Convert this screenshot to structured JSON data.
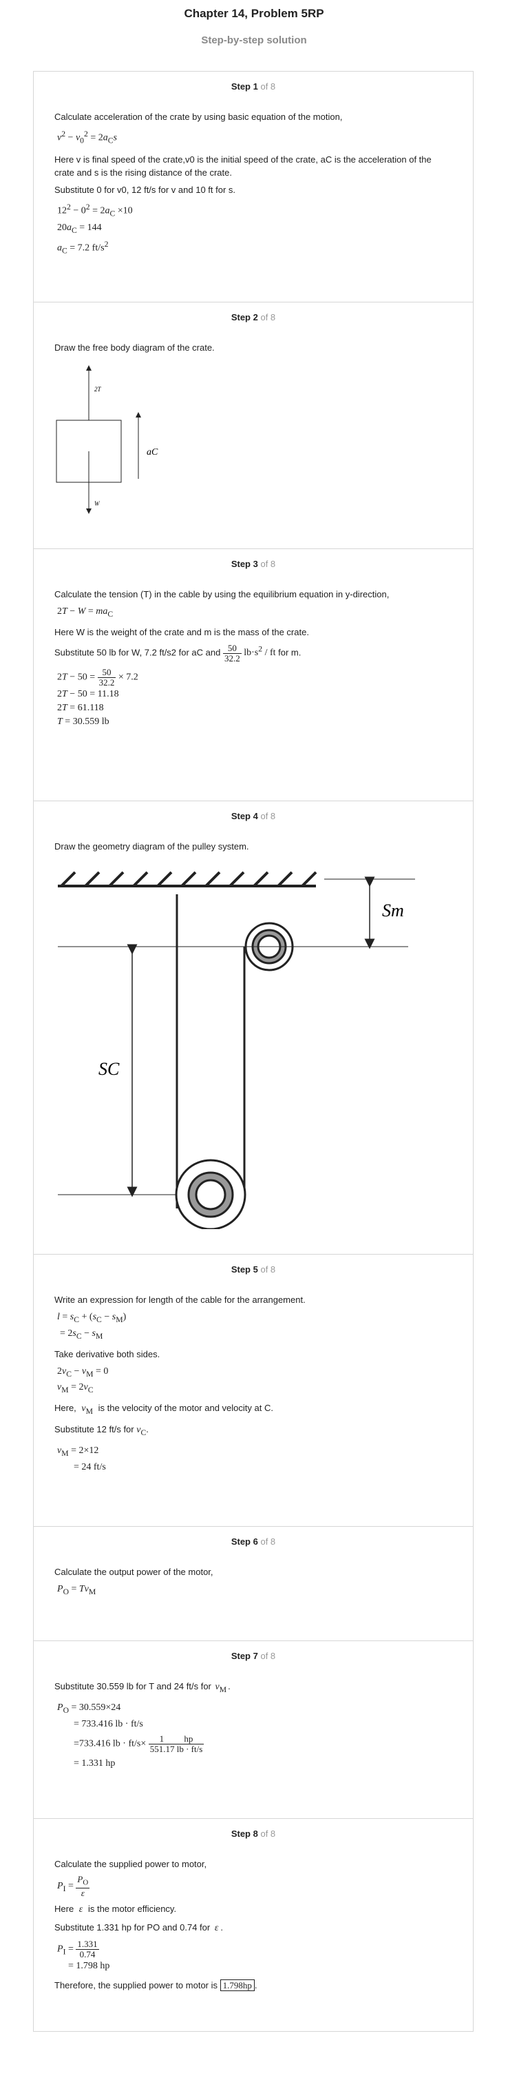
{
  "header": {
    "title": "Chapter 14, Problem 5RP",
    "subtitle": "Step-by-step solution"
  },
  "steps": [
    {
      "label": "Step 1",
      "of": "of 8",
      "t1": "Calculate acceleration of the crate by using basic equation of the motion,",
      "t2": "Here v is final speed of the crate,v0 is the initial speed of the crate, aC is the acceleration of the crate and s is the rising distance of the crate.",
      "t3": "Substitute 0 for v0, 12 ft/s for v and 10 ft for s."
    },
    {
      "label": "Step 2",
      "of": "of 8",
      "t1": "Draw the free body diagram of the crate.",
      "fbd": {
        "tension": "2T",
        "weight": "W",
        "accel": "aC"
      }
    },
    {
      "label": "Step 3",
      "of": "of 8",
      "t1": "Calculate the tension (T) in the cable by using the equilibrium equation in y-direction,",
      "t2": "Here W is the weight of the crate and m is the mass of the crate.",
      "t3a": "Substitute 50 lb for W, 7.2 ft/s2 for aC and",
      "t3b": "for m."
    },
    {
      "label": "Step 4",
      "of": "of 8",
      "t1": "Draw the geometry diagram of the pulley system.",
      "geo": {
        "sm": "Sm",
        "sc": "SC"
      }
    },
    {
      "label": "Step 5",
      "of": "of 8",
      "t1": "Write an expression for length of the cable for the arrangement.",
      "t2": "Take derivative both sides.",
      "t3": "is the velocity of the motor and velocity at C.",
      "t4": "Substitute 12 ft/s for"
    },
    {
      "label": "Step 6",
      "of": "of 8",
      "t1": "Calculate the output power of the motor,"
    },
    {
      "label": "Step 7",
      "of": "of 8",
      "t1": "Substitute 30.559 lb for T and 24 ft/s for"
    },
    {
      "label": "Step 8",
      "of": "of 8",
      "t1": "Calculate the supplied power to motor,",
      "t2": "is the motor efficiency.",
      "t3": "Substitute 1.331 hp for PO and 0.74 for",
      "t4": "Therefore, the supplied power to motor is",
      "answer": "1.798hp"
    }
  ]
}
